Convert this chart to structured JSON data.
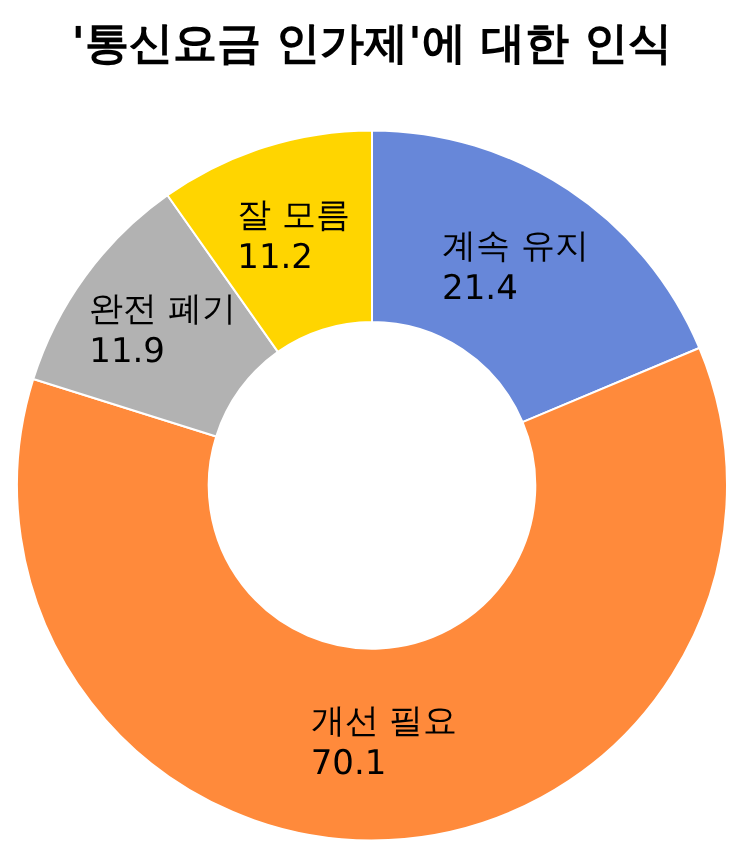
{
  "chart_data": {
    "type": "donut",
    "title": "'통신요금 인가제'에 대한 인식",
    "categories": [
      "계속 유지",
      "개선 필요",
      "완전 폐기",
      "잘 모름"
    ],
    "values": [
      21.4,
      70.1,
      11.9,
      11.2
    ],
    "colors": [
      "#6787d9",
      "#ff8a3b",
      "#b2b2b2",
      "#ffd500"
    ],
    "data_labels": true,
    "legend": false
  }
}
